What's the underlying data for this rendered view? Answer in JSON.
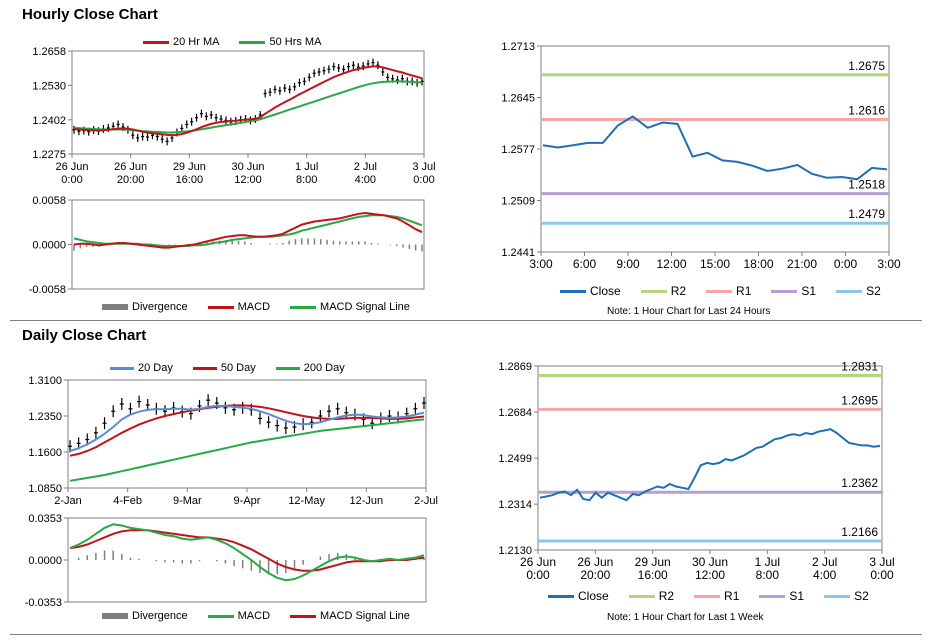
{
  "sections": {
    "hourly_title": "Hourly Close Chart",
    "daily_title": "Daily Close Chart"
  },
  "colors": {
    "close": "#1f6fb4",
    "ma_short": "#c0141c",
    "ma_long": "#2aa845",
    "ma20day": "#5b8ed0",
    "r2": "#b5d57a",
    "r1": "#f2a6a6",
    "s1": "#b59fd0",
    "s2": "#8cc8e3",
    "divergence": "#7f7f7f",
    "candle": "#000000"
  },
  "chart_data": [
    {
      "id": "hourly_price",
      "type": "line",
      "series": [
        {
          "name": "20 Hr MA"
        },
        {
          "name": "50 Hrs MA"
        }
      ],
      "x_ticks": [
        "26 Jun\n0:00",
        "26 Jun\n20:00",
        "29 Jun\n16:00",
        "30 Jun\n12:00",
        "1 Jul\n8:00",
        "2 Jul\n4:00",
        "3 Jul\n0:00"
      ],
      "y_ticks": [
        "1.2658",
        "1.2530",
        "1.2402",
        "1.2275"
      ],
      "ylim": [
        1.2275,
        1.2658
      ],
      "close": [
        1.2365,
        1.236,
        1.2362,
        1.2358,
        1.2364,
        1.236,
        1.2368,
        1.2372,
        1.2378,
        1.2385,
        1.2375,
        1.2365,
        1.2345,
        1.2335,
        1.234,
        1.2338,
        1.2345,
        1.234,
        1.233,
        1.2322,
        1.2335,
        1.2355,
        1.237,
        1.2385,
        1.2395,
        1.241,
        1.2425,
        1.2415,
        1.242,
        1.241,
        1.2405,
        1.24,
        1.2395,
        1.2398,
        1.2402,
        1.2405,
        1.24,
        1.2405,
        1.242,
        1.25,
        1.2505,
        1.2515,
        1.251,
        1.252,
        1.2515,
        1.2525,
        1.254,
        1.2545,
        1.256,
        1.2575,
        1.258,
        1.2585,
        1.259,
        1.26,
        1.2595,
        1.259,
        1.26,
        1.2605,
        1.2598,
        1.2602,
        1.261,
        1.2615,
        1.2605,
        1.258,
        1.256,
        1.2555,
        1.255,
        1.2555,
        1.2545,
        1.2545,
        1.254,
        1.2545
      ],
      "ma_short": [
        1.2368,
        1.2366,
        1.2365,
        1.2364,
        1.2363,
        1.2362,
        1.2363,
        1.2365,
        1.2367,
        1.2369,
        1.237,
        1.2369,
        1.2366,
        1.2362,
        1.2358,
        1.2355,
        1.2352,
        1.235,
        1.2348,
        1.2346,
        1.2345,
        1.2346,
        1.2349,
        1.2354,
        1.236,
        1.2367,
        1.2375,
        1.2381,
        1.2387,
        1.2391,
        1.2394,
        1.2396,
        1.2398,
        1.2399,
        1.2401,
        1.2403,
        1.2404,
        1.2406,
        1.2412,
        1.2425,
        1.2436,
        1.2448,
        1.2458,
        1.2468,
        1.2477,
        1.2487,
        1.2497,
        1.2506,
        1.2516,
        1.2525,
        1.2534,
        1.2543,
        1.2552,
        1.2561,
        1.2568,
        1.2575,
        1.2581,
        1.2587,
        1.2591,
        1.2595,
        1.2598,
        1.2601,
        1.26,
        1.2597,
        1.2592,
        1.2587,
        1.2582,
        1.2578,
        1.2572,
        1.2567,
        1.2562,
        1.2556
      ],
      "ma_long": [
        1.2372,
        1.2371,
        1.237,
        1.2369,
        1.2368,
        1.2367,
        1.2366,
        1.2366,
        1.2366,
        1.2366,
        1.2366,
        1.2365,
        1.2364,
        1.2362,
        1.236,
        1.2359,
        1.2358,
        1.2357,
        1.2356,
        1.2355,
        1.2355,
        1.2356,
        1.2357,
        1.2359,
        1.2361,
        1.2364,
        1.2367,
        1.237,
        1.2373,
        1.2376,
        1.2379,
        1.2382,
        1.2385,
        1.2388,
        1.2391,
        1.2394,
        1.2397,
        1.24,
        1.2404,
        1.241,
        1.2416,
        1.2422,
        1.2428,
        1.2434,
        1.244,
        1.2446,
        1.2452,
        1.2458,
        1.2464,
        1.247,
        1.2476,
        1.2482,
        1.2488,
        1.2494,
        1.25,
        1.2506,
        1.2512,
        1.2518,
        1.2524,
        1.2529,
        1.2534,
        1.2538,
        1.2541,
        1.2543,
        1.2544,
        1.2545,
        1.2545,
        1.2545,
        1.2544,
        1.2543,
        1.2542,
        1.2541
      ]
    },
    {
      "id": "hourly_macd",
      "type": "line",
      "series": [
        {
          "name": "Divergence"
        },
        {
          "name": "MACD"
        },
        {
          "name": "MACD Signal Line"
        }
      ],
      "y_ticks": [
        "0.0058",
        "0.0000",
        "-0.0058"
      ],
      "ylim": [
        -0.0058,
        0.0058
      ],
      "macd": [
        0.0,
        0.0001,
        0.0001,
        0.0,
        -0.0001,
        0.0,
        0.0001,
        0.0002,
        0.0002,
        0.0001,
        0.0,
        -0.0001,
        -0.0002,
        -0.0003,
        -0.0004,
        -0.0004,
        -0.0003,
        -0.0002,
        -0.0001,
        0.0,
        0.0002,
        0.0004,
        0.0006,
        0.0008,
        0.001,
        0.0011,
        0.0012,
        0.0012,
        0.0011,
        0.001,
        0.001,
        0.0011,
        0.0012,
        0.0014,
        0.0018,
        0.0022,
        0.0026,
        0.0028,
        0.003,
        0.0031,
        0.0032,
        0.0033,
        0.0034,
        0.0036,
        0.0038,
        0.004,
        0.0041,
        0.004,
        0.0039,
        0.0038,
        0.0036,
        0.0034,
        0.003,
        0.0025,
        0.002,
        0.0016
      ],
      "signal": [
        0.0008,
        0.0006,
        0.0004,
        0.0003,
        0.0002,
        0.0001,
        0.0001,
        0.0001,
        0.0001,
        0.0001,
        0.0001,
        0.0,
        0.0,
        -0.0001,
        -0.0002,
        -0.0002,
        -0.0002,
        -0.0002,
        -0.0002,
        -0.0001,
        -0.0001,
        0.0,
        0.0002,
        0.0003,
        0.0004,
        0.0006,
        0.0007,
        0.0008,
        0.0009,
        0.001,
        0.001,
        0.001,
        0.0011,
        0.0012,
        0.0013,
        0.0015,
        0.0018,
        0.002,
        0.0022,
        0.0024,
        0.0026,
        0.0028,
        0.003,
        0.0032,
        0.0034,
        0.0036,
        0.0037,
        0.0038,
        0.0038,
        0.0038,
        0.0037,
        0.0036,
        0.0034,
        0.0031,
        0.0028,
        0.0025
      ],
      "divergence": [
        -0.0008,
        -0.0005,
        -0.0003,
        -0.0003,
        -0.0003,
        -0.0001,
        0.0,
        0.0001,
        0.0001,
        0.0,
        -0.0001,
        -0.0001,
        -0.0002,
        -0.0002,
        -0.0002,
        -0.0002,
        -0.0001,
        0.0,
        0.0001,
        0.0001,
        0.0003,
        0.0004,
        0.0004,
        0.0005,
        0.0006,
        0.0005,
        0.0005,
        0.0004,
        0.0002,
        0.0,
        0.0,
        0.0001,
        0.0001,
        0.0002,
        0.0005,
        0.0007,
        0.0008,
        0.0008,
        0.0008,
        0.0007,
        0.0006,
        0.0005,
        0.0004,
        0.0004,
        0.0004,
        0.0004,
        0.0004,
        0.0002,
        0.0001,
        0.0,
        -0.0001,
        -0.0002,
        -0.0004,
        -0.0006,
        -0.0008,
        -0.0009
      ]
    },
    {
      "id": "hourly_levels",
      "type": "line",
      "series": [
        {
          "name": "Close"
        },
        {
          "name": "R2"
        },
        {
          "name": "R1"
        },
        {
          "name": "S1"
        },
        {
          "name": "S2"
        }
      ],
      "x_ticks": [
        "3:00",
        "6:00",
        "9:00",
        "12:00",
        "15:00",
        "18:00",
        "21:00",
        "0:00",
        "3:00"
      ],
      "y_ticks": [
        "1.2713",
        "1.2645",
        "1.2577",
        "1.2509",
        "1.2441"
      ],
      "ylim": [
        1.2441,
        1.2713
      ],
      "levels": {
        "R2": 1.2675,
        "R1": 1.2616,
        "S1": 1.2518,
        "S2": 1.2479
      },
      "level_labels": {
        "R2": "1.2675",
        "R1": "1.2616",
        "S1": "1.2518",
        "S2": "1.2479"
      },
      "close": [
        1.2582,
        1.2579,
        1.2582,
        1.2585,
        1.2585,
        1.2608,
        1.262,
        1.2605,
        1.2612,
        1.261,
        1.2567,
        1.2572,
        1.2562,
        1.256,
        1.2555,
        1.2548,
        1.2551,
        1.2556,
        1.2544,
        1.2539,
        1.254,
        1.2537,
        1.2552,
        1.255
      ],
      "note": "Note: 1 Hour Chart for Last 24 Hours"
    },
    {
      "id": "daily_price",
      "type": "line",
      "series": [
        {
          "name": "20 Day"
        },
        {
          "name": "50 Day"
        },
        {
          "name": "200 Day"
        }
      ],
      "x_ticks": [
        "2-Jan",
        "4-Feb",
        "9-Mar",
        "9-Apr",
        "12-May",
        "12-Jun",
        "2-Jul"
      ],
      "y_ticks": [
        "1.3100",
        "1.2350",
        "1.1600",
        "1.0850"
      ],
      "ylim": [
        1.085,
        1.31
      ],
      "close": [
        1.172,
        1.178,
        1.186,
        1.2,
        1.22,
        1.245,
        1.26,
        1.25,
        1.265,
        1.258,
        1.25,
        1.245,
        1.252,
        1.244,
        1.24,
        1.256,
        1.268,
        1.262,
        1.252,
        1.248,
        1.252,
        1.248,
        1.23,
        1.222,
        1.215,
        1.21,
        1.212,
        1.218,
        1.222,
        1.235,
        1.245,
        1.25,
        1.242,
        1.238,
        1.228,
        1.22,
        1.23,
        1.235,
        1.232,
        1.24,
        1.25,
        1.262
      ],
      "ma20": [
        1.162,
        1.168,
        1.176,
        1.186,
        1.198,
        1.212,
        1.228,
        1.238,
        1.244,
        1.248,
        1.249,
        1.249,
        1.25,
        1.25,
        1.248,
        1.25,
        1.254,
        1.256,
        1.256,
        1.254,
        1.252,
        1.25,
        1.245,
        1.239,
        1.232,
        1.225,
        1.22,
        1.218,
        1.219,
        1.222,
        1.227,
        1.232,
        1.236,
        1.238,
        1.237,
        1.234,
        1.232,
        1.231,
        1.232,
        1.234,
        1.238,
        1.242
      ],
      "ma50": [
        1.152,
        1.156,
        1.162,
        1.17,
        1.18,
        1.19,
        1.2,
        1.209,
        1.217,
        1.224,
        1.23,
        1.235,
        1.239,
        1.243,
        1.246,
        1.249,
        1.252,
        1.254,
        1.256,
        1.257,
        1.257,
        1.256,
        1.254,
        1.251,
        1.247,
        1.243,
        1.239,
        1.235,
        1.232,
        1.23,
        1.229,
        1.229,
        1.23,
        1.231,
        1.231,
        1.231,
        1.23,
        1.229,
        1.229,
        1.23,
        1.232,
        1.234
      ],
      "ma200": [
        1.1,
        1.103,
        1.106,
        1.109,
        1.112,
        1.116,
        1.12,
        1.124,
        1.128,
        1.132,
        1.136,
        1.14,
        1.144,
        1.148,
        1.152,
        1.156,
        1.16,
        1.164,
        1.168,
        1.172,
        1.176,
        1.18,
        1.183,
        1.186,
        1.189,
        1.192,
        1.195,
        1.198,
        1.201,
        1.204,
        1.206,
        1.208,
        1.21,
        1.212,
        1.214,
        1.216,
        1.218,
        1.22,
        1.222,
        1.224,
        1.226,
        1.228
      ]
    },
    {
      "id": "daily_macd",
      "type": "line",
      "series": [
        {
          "name": "Divergence"
        },
        {
          "name": "MACD"
        },
        {
          "name": "MACD Signal Line"
        }
      ],
      "y_ticks": [
        "0.0353",
        "0.0000",
        "-0.0353"
      ],
      "ylim": [
        -0.0353,
        0.0353
      ],
      "macd": [
        0.01,
        0.013,
        0.017,
        0.022,
        0.027,
        0.03,
        0.029,
        0.027,
        0.026,
        0.025,
        0.023,
        0.021,
        0.02,
        0.018,
        0.017,
        0.018,
        0.019,
        0.017,
        0.014,
        0.01,
        0.005,
        0.0,
        -0.006,
        -0.011,
        -0.015,
        -0.017,
        -0.016,
        -0.013,
        -0.009,
        -0.005,
        -0.001,
        0.002,
        0.003,
        0.002,
        0.0,
        -0.001,
        0.0,
        0.001,
        0.0,
        0.001,
        0.002,
        0.004
      ],
      "signal": [
        0.01,
        0.011,
        0.013,
        0.016,
        0.019,
        0.022,
        0.024,
        0.025,
        0.025,
        0.025,
        0.024,
        0.023,
        0.022,
        0.021,
        0.02,
        0.019,
        0.019,
        0.018,
        0.017,
        0.015,
        0.012,
        0.009,
        0.005,
        0.001,
        -0.003,
        -0.006,
        -0.008,
        -0.009,
        -0.009,
        -0.008,
        -0.006,
        -0.004,
        -0.002,
        -0.001,
        -0.001,
        -0.001,
        -0.001,
        0.0,
        0.0,
        0.0,
        0.001,
        0.002
      ],
      "divergence": [
        0.0,
        0.002,
        0.004,
        0.006,
        0.008,
        0.008,
        0.005,
        0.002,
        0.001,
        0.0,
        -0.001,
        -0.002,
        -0.002,
        -0.003,
        -0.003,
        -0.001,
        0.0,
        -0.001,
        -0.003,
        -0.005,
        -0.007,
        -0.009,
        -0.011,
        -0.012,
        -0.012,
        -0.011,
        -0.008,
        -0.004,
        0.0,
        0.003,
        0.005,
        0.006,
        0.005,
        0.003,
        0.001,
        0.0,
        0.001,
        0.001,
        0.0,
        0.001,
        0.001,
        0.002
      ]
    },
    {
      "id": "daily_levels",
      "type": "line",
      "series": [
        {
          "name": "Close"
        },
        {
          "name": "R2"
        },
        {
          "name": "R1"
        },
        {
          "name": "S1"
        },
        {
          "name": "S2"
        }
      ],
      "x_ticks": [
        "26 Jun\n0:00",
        "26 Jun\n20:00",
        "29 Jun\n16:00",
        "30 Jun\n12:00",
        "1 Jul\n8:00",
        "2 Jul\n4:00",
        "3 Jul\n0:00"
      ],
      "y_ticks": [
        "1.2869",
        "1.2684",
        "1.2499",
        "1.2314",
        "1.2130"
      ],
      "ylim": [
        1.213,
        1.2869
      ],
      "levels": {
        "R2": 1.2831,
        "R1": 1.2695,
        "S1": 1.2362,
        "S2": 1.2166
      },
      "level_labels": {
        "R2": "1.2831",
        "R1": "1.2695",
        "S1": "1.2362",
        "S2": "1.2166"
      },
      "close": [
        1.234,
        1.2345,
        1.235,
        1.236,
        1.2365,
        1.235,
        1.2372,
        1.2335,
        1.233,
        1.236,
        1.234,
        1.236,
        1.235,
        1.234,
        1.233,
        1.2355,
        1.235,
        1.2365,
        1.2375,
        1.2385,
        1.238,
        1.2395,
        1.2385,
        1.238,
        1.2375,
        1.242,
        1.247,
        1.248,
        1.2475,
        1.248,
        1.2495,
        1.249,
        1.25,
        1.251,
        1.2525,
        1.254,
        1.2545,
        1.256,
        1.2575,
        1.258,
        1.259,
        1.2595,
        1.259,
        1.26,
        1.2595,
        1.2605,
        1.261,
        1.2615,
        1.26,
        1.258,
        1.256,
        1.2555,
        1.255,
        1.255,
        1.2545,
        1.2548
      ],
      "note": "Note: 1 Hour Chart for  Last 1 Week"
    }
  ]
}
